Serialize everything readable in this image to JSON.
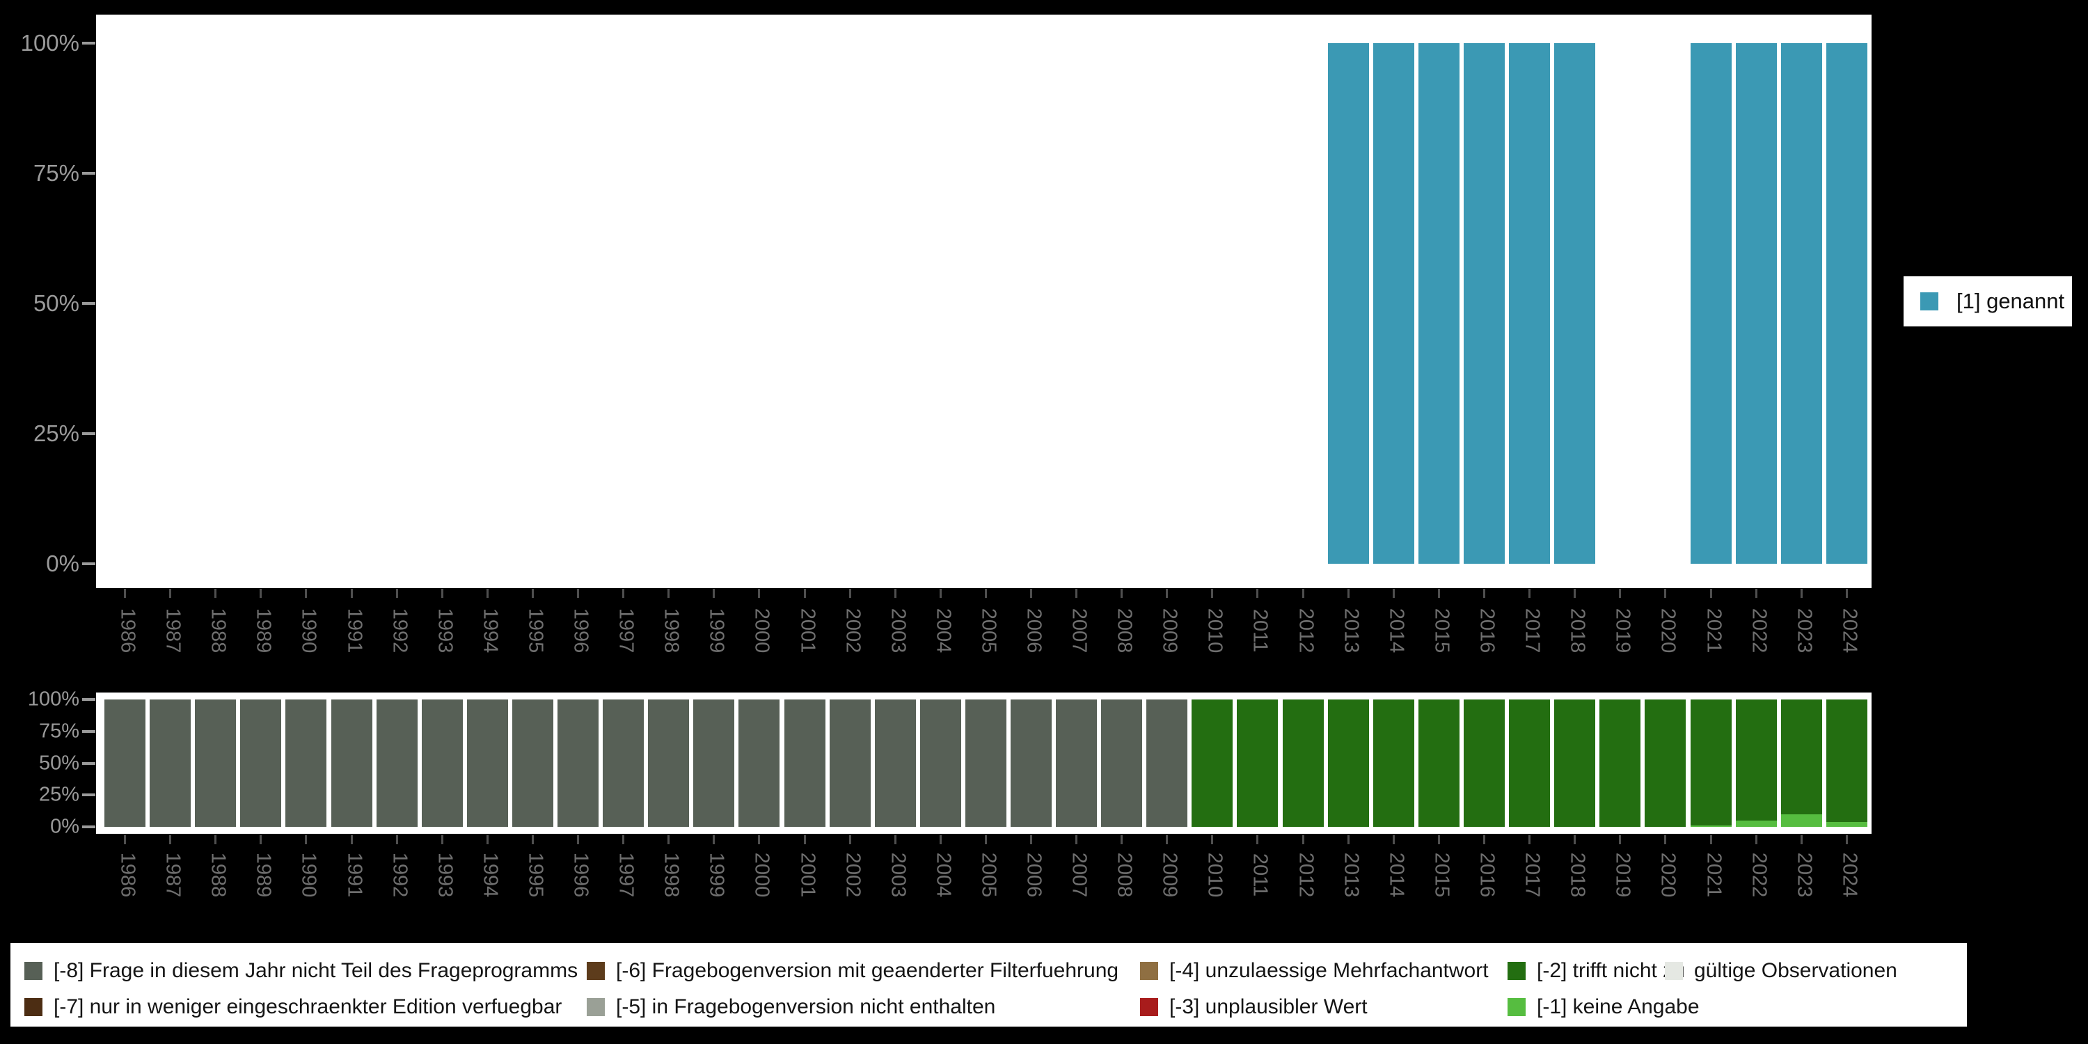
{
  "background": "#000000",
  "chart_data": [
    {
      "id": "valid-answers",
      "type": "bar",
      "title": "",
      "categories": [
        "1986",
        "1987",
        "1988",
        "1989",
        "1990",
        "1991",
        "1992",
        "1993",
        "1994",
        "1995",
        "1996",
        "1997",
        "1998",
        "1999",
        "2000",
        "2001",
        "2002",
        "2003",
        "2004",
        "2005",
        "2006",
        "2007",
        "2008",
        "2009",
        "2010",
        "2011",
        "2012",
        "2013",
        "2014",
        "2015",
        "2016",
        "2017",
        "2018",
        "2019",
        "2020",
        "2021",
        "2022",
        "2023",
        "2024"
      ],
      "series": [
        {
          "name": "[1] genannt",
          "color": "#3b99b4",
          "values": [
            0,
            0,
            0,
            0,
            0,
            0,
            0,
            0,
            0,
            0,
            0,
            0,
            0,
            0,
            0,
            0,
            0,
            0,
            0,
            0,
            0,
            0,
            0,
            0,
            0,
            0,
            0,
            100,
            100,
            100,
            100,
            100,
            100,
            0,
            0,
            100,
            100,
            100,
            100
          ]
        }
      ],
      "y_ticks": [
        {
          "label": "100%",
          "value": 100
        },
        {
          "label": "75%",
          "value": 75
        },
        {
          "label": "50%",
          "value": 50
        },
        {
          "label": "25%",
          "value": 25
        },
        {
          "label": "0%",
          "value": 0
        }
      ],
      "ylim": [
        0,
        100
      ],
      "grid": false,
      "legend_position": "right"
    },
    {
      "id": "missing-values",
      "type": "stacked-bar",
      "title": "",
      "stack_order": "first-series-at-bottom",
      "categories": [
        "1986",
        "1987",
        "1988",
        "1989",
        "1990",
        "1991",
        "1992",
        "1993",
        "1994",
        "1995",
        "1996",
        "1997",
        "1998",
        "1999",
        "2000",
        "2001",
        "2002",
        "2003",
        "2004",
        "2005",
        "2006",
        "2007",
        "2008",
        "2009",
        "2010",
        "2011",
        "2012",
        "2013",
        "2014",
        "2015",
        "2016",
        "2017",
        "2018",
        "2019",
        "2020",
        "2021",
        "2022",
        "2023",
        "2024"
      ],
      "series": [
        {
          "name": "[-1] keine Angabe",
          "color": "#56bd40",
          "values": [
            0,
            0,
            0,
            0,
            0,
            0,
            0,
            0,
            0,
            0,
            0,
            0,
            0,
            0,
            0,
            0,
            0,
            0,
            0,
            0,
            0,
            0,
            0,
            0,
            0,
            0,
            0,
            0,
            0,
            0,
            0,
            0,
            0,
            0,
            0,
            1,
            5,
            10,
            4
          ]
        },
        {
          "name": "[-2] trifft nicht zu",
          "color": "#236e11",
          "values": [
            0,
            0,
            0,
            0,
            0,
            0,
            0,
            0,
            0,
            0,
            0,
            0,
            0,
            0,
            0,
            0,
            0,
            0,
            0,
            0,
            0,
            0,
            0,
            0,
            100,
            100,
            100,
            100,
            100,
            100,
            100,
            100,
            100,
            100,
            100,
            99,
            95,
            90,
            96
          ]
        },
        {
          "name": "[-8] Frage in diesem Jahr nicht Teil des Frageprogramms",
          "color": "#576056",
          "values": [
            100,
            100,
            100,
            100,
            100,
            100,
            100,
            100,
            100,
            100,
            100,
            100,
            100,
            100,
            100,
            100,
            100,
            100,
            100,
            100,
            100,
            100,
            100,
            100,
            0,
            0,
            0,
            0,
            0,
            0,
            0,
            0,
            0,
            0,
            0,
            0,
            0,
            0,
            0
          ]
        }
      ],
      "y_ticks": [
        {
          "label": "100%",
          "value": 100
        },
        {
          "label": "75%",
          "value": 75
        },
        {
          "label": "50%",
          "value": 50
        },
        {
          "label": "25%",
          "value": 25
        },
        {
          "label": "0%",
          "value": 0
        }
      ],
      "ylim": [
        0,
        100
      ],
      "grid": false
    }
  ],
  "top_legend": {
    "label": "[1] genannt",
    "swatch_color": "#3b99b4"
  },
  "legend_panel": {
    "rows": [
      [
        {
          "label": "[-8] Frage in diesem Jahr nicht Teil des Frageprogramms",
          "color": "#576056"
        },
        {
          "label": "[-6] Fragebogenversion mit geaenderter Filterfuehrung",
          "color": "#5d3c1c"
        },
        {
          "label": "[-4] unzulaessige Mehrfachantwort",
          "color": "#8f6f42"
        },
        {
          "label": "[-2] trifft nicht zu",
          "color": "#236e11"
        },
        {
          "label": "gültige Observationen",
          "color": "#e5e8e3"
        }
      ],
      [
        {
          "label": "[-7] nur in weniger eingeschraenkter Edition verfuegbar",
          "color": "#4c2d13"
        },
        {
          "label": "[-5] in Fragebogenversion nicht enthalten",
          "color": "#9aa096"
        },
        {
          "label": "[-3] unplausibler Wert",
          "color": "#a81c1c"
        },
        {
          "label": "[-1] keine Angabe",
          "color": "#56bd40"
        }
      ]
    ]
  }
}
